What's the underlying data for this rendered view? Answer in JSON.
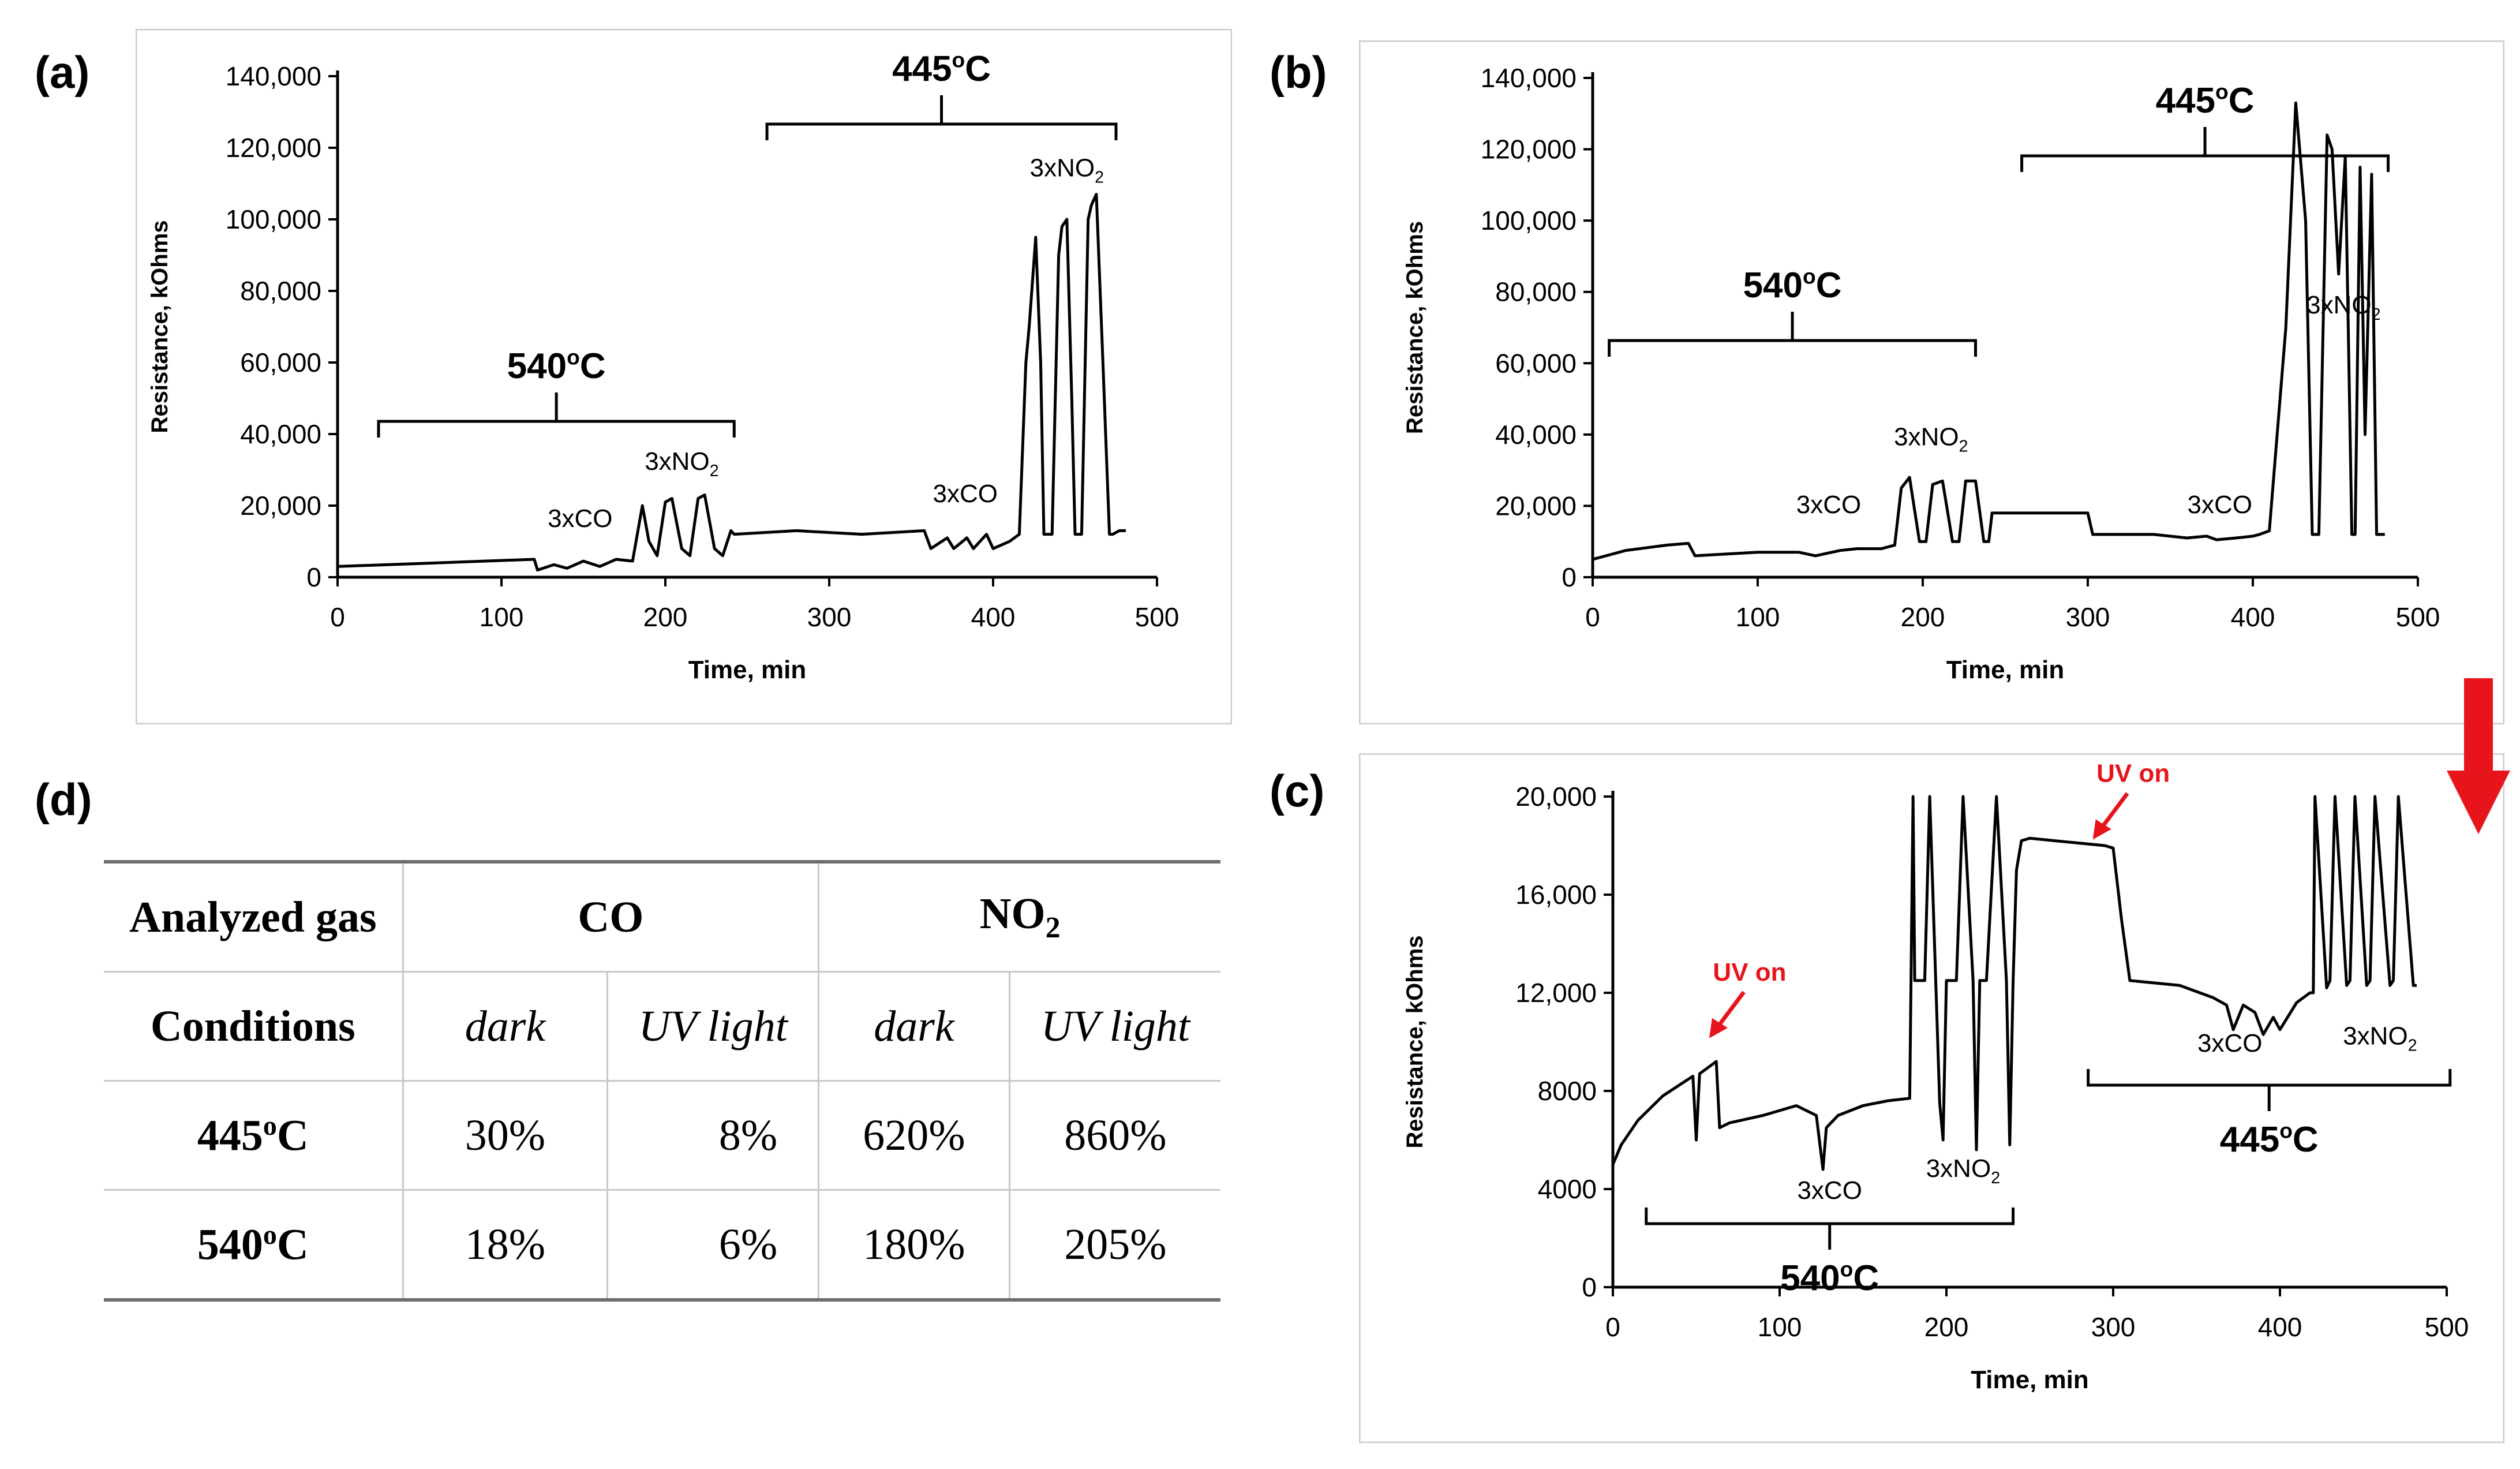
{
  "labels": {
    "a": "(a)",
    "b": "(b)",
    "c": "(c)",
    "d": "(d)"
  },
  "chart_data": [
    {
      "id": "a",
      "type": "line",
      "xlabel": "Time, min",
      "ylabel": "Resistance, kOhms",
      "xlim": [
        0,
        500
      ],
      "ylim": [
        0,
        140000
      ],
      "xticks": [
        0,
        100,
        200,
        300,
        400,
        500
      ],
      "xtick_labels": [
        "0",
        "100",
        "200",
        "300",
        "400",
        "500"
      ],
      "yticks": [
        0,
        20000,
        40000,
        60000,
        80000,
        100000,
        120000,
        140000
      ],
      "ytick_labels": [
        "0",
        "20,000",
        "40,000",
        "60,000",
        "80,000",
        "100,000",
        "120,000",
        "140,000"
      ],
      "series": [
        {
          "name": "Resistance",
          "x": [
            0,
            60,
            120,
            122,
            132,
            140,
            150,
            160,
            170,
            180,
            186,
            190,
            195,
            200,
            204,
            210,
            215,
            220,
            224,
            230,
            235,
            240,
            242,
            280,
            320,
            358,
            362,
            372,
            376,
            384,
            388,
            396,
            400,
            410,
            416,
            420,
            422,
            426,
            429,
            431,
            436,
            440,
            442,
            445,
            448,
            450,
            454,
            458,
            460,
            463,
            467,
            471,
            473,
            477,
            481
          ],
          "y": [
            3000,
            4000,
            5000,
            2000,
            3500,
            2500,
            4500,
            3000,
            5000,
            4500,
            20000,
            10000,
            6000,
            21000,
            22000,
            8000,
            6000,
            22000,
            23000,
            8000,
            6000,
            13000,
            12000,
            13000,
            12000,
            13000,
            8000,
            11000,
            8000,
            11000,
            8000,
            12000,
            8000,
            10000,
            12000,
            60000,
            70000,
            95000,
            60000,
            12000,
            12000,
            90000,
            98000,
            100000,
            50000,
            12000,
            12000,
            100000,
            104000,
            107000,
            60000,
            12000,
            12000,
            13000,
            13000
          ]
        }
      ],
      "annotations": [
        {
          "text": "540°C",
          "x_range": [
            25,
            242
          ]
        },
        {
          "text": "445°C",
          "x_range": [
            262,
            475
          ]
        },
        {
          "text": "3xCO",
          "x": 148,
          "y": 14000
        },
        {
          "text": "3xNO2",
          "x": 210,
          "y": 30000
        },
        {
          "text": "3xCO",
          "x": 383,
          "y": 21000
        },
        {
          "text": "3xNO2",
          "x": 445,
          "y": 112000
        }
      ]
    },
    {
      "id": "b",
      "type": "line",
      "xlabel": "Time, min",
      "ylabel": "Resistance, kOhms",
      "xlim": [
        0,
        500
      ],
      "ylim": [
        0,
        140000
      ],
      "xticks": [
        0,
        100,
        200,
        300,
        400,
        500
      ],
      "xtick_labels": [
        "0",
        "100",
        "200",
        "300",
        "400",
        "500"
      ],
      "yticks": [
        0,
        20000,
        40000,
        60000,
        80000,
        100000,
        120000,
        140000
      ],
      "ytick_labels": [
        "0",
        "20,000",
        "40,000",
        "60,000",
        "80,000",
        "100,000",
        "120,000",
        "140,000"
      ],
      "series": [
        {
          "name": "Resistance",
          "x": [
            0,
            20,
            45,
            58,
            62,
            100,
            125,
            135,
            150,
            160,
            175,
            183,
            187,
            192,
            198,
            202,
            206,
            212,
            218,
            222,
            226,
            232,
            237,
            240,
            242,
            290,
            300,
            303,
            340,
            360,
            372,
            378,
            390,
            400,
            404,
            410,
            420,
            426,
            432,
            436,
            440,
            445,
            448,
            452,
            456,
            460,
            462,
            465,
            468,
            472,
            475,
            480
          ],
          "y": [
            5000,
            7500,
            9000,
            9500,
            6000,
            7000,
            7000,
            6000,
            7500,
            8000,
            8000,
            9000,
            25000,
            28000,
            10000,
            10000,
            26000,
            27000,
            10000,
            10000,
            27000,
            27000,
            10000,
            10000,
            18000,
            18000,
            18000,
            12000,
            12000,
            11000,
            11500,
            10500,
            11000,
            11500,
            12000,
            13000,
            70000,
            133000,
            100000,
            12000,
            12000,
            124000,
            120000,
            85000,
            118000,
            12000,
            12000,
            115000,
            40000,
            113000,
            12000,
            12000
          ]
        }
      ],
      "annotations": [
        {
          "text": "540°C",
          "x_range": [
            10,
            232
          ]
        },
        {
          "text": "445°C",
          "x_range": [
            260,
            482
          ]
        },
        {
          "text": "3xCO",
          "x": 143,
          "y": 18000
        },
        {
          "text": "3xNO2",
          "x": 205,
          "y": 37000
        },
        {
          "text": "3xCO",
          "x": 380,
          "y": 18000
        },
        {
          "text": "3xNO2",
          "x": 455,
          "y": 74000
        }
      ]
    },
    {
      "id": "c",
      "type": "line",
      "xlabel": "Time, min",
      "ylabel": "Resistance, kOhms",
      "xlim": [
        0,
        500
      ],
      "ylim": [
        0,
        20000
      ],
      "xticks": [
        0,
        100,
        200,
        300,
        400,
        500
      ],
      "xtick_labels": [
        "0",
        "100",
        "200",
        "300",
        "400",
        "500"
      ],
      "yticks": [
        0,
        4000,
        8000,
        12000,
        16000,
        20000
      ],
      "ytick_labels": [
        "0",
        "4000",
        "8000",
        "12,000",
        "16,000",
        "20,000"
      ],
      "series": [
        {
          "name": "Resistance",
          "x": [
            0,
            5,
            15,
            30,
            48,
            50,
            52,
            62,
            64,
            70,
            90,
            100,
            110,
            122,
            126,
            128,
            135,
            150,
            165,
            178,
            180,
            181,
            187,
            190,
            196,
            198,
            200,
            206,
            210,
            216,
            218,
            220,
            224,
            230,
            236,
            238,
            240,
            242,
            245,
            250,
            280,
            295,
            300,
            305,
            310,
            340,
            360,
            368,
            372,
            378,
            385,
            390,
            396,
            400,
            410,
            418,
            420,
            421,
            428,
            430,
            433,
            440,
            442,
            445,
            452,
            454,
            457,
            466,
            468,
            471,
            480,
            482
          ],
          "y": [
            5000,
            5800,
            6800,
            7800,
            8600,
            6000,
            8700,
            9200,
            6500,
            6700,
            7000,
            7200,
            7400,
            7000,
            4800,
            6500,
            7000,
            7400,
            7600,
            7700,
            20000,
            12500,
            12500,
            20000,
            7500,
            6000,
            12500,
            12500,
            20000,
            12500,
            5600,
            12500,
            12500,
            20000,
            12500,
            5800,
            12500,
            17000,
            18200,
            18300,
            18100,
            18000,
            17900,
            15000,
            12500,
            12300,
            11800,
            11500,
            10500,
            11500,
            11200,
            10300,
            11000,
            10500,
            11600,
            12000,
            12000,
            20000,
            12200,
            12500,
            20000,
            12300,
            12500,
            20000,
            12300,
            12500,
            20000,
            12300,
            12500,
            20000,
            12300,
            12300
          ]
        }
      ],
      "annotations": [
        {
          "text": "UV on",
          "x": 82,
          "y": 12500,
          "color": "#e8141b"
        },
        {
          "text": "UV on",
          "x": 312,
          "y": 20600,
          "color": "#e8141b"
        },
        {
          "text": "3xCO",
          "x": 130,
          "y": 3600
        },
        {
          "text": "3xNO2",
          "x": 210,
          "y": 4500
        },
        {
          "text": "540°C",
          "x_range": [
            20,
            240
          ]
        },
        {
          "text": "3xCO",
          "x": 370,
          "y": 9600
        },
        {
          "text": "3xNO2",
          "x": 460,
          "y": 9900
        },
        {
          "text": "445°C",
          "x_range": [
            285,
            502
          ]
        }
      ]
    }
  ],
  "table": {
    "header_row_1": {
      "col1": "Analyzed gas",
      "co": "CO",
      "no2": "NO",
      "no2_sub": "2"
    },
    "header_row_2": {
      "col1": "Conditions",
      "c1": "dark",
      "c2": "UV light",
      "c3": "dark",
      "c4": "UV light"
    },
    "rows": [
      {
        "condition": "445",
        "condition_sup": "o",
        "condition_unit": "C",
        "co_dark": "30%",
        "co_uv": "8%",
        "no2_dark": "620%",
        "no2_uv": "860%"
      },
      {
        "condition": "540",
        "condition_sup": "o",
        "condition_unit": "C",
        "co_dark": "18%",
        "co_uv": "6%",
        "no2_dark": "180%",
        "no2_uv": "205%"
      }
    ]
  },
  "colors": {
    "axis": "#000000",
    "line": "#000000",
    "uv_annotation": "#e8141b",
    "arrow": "#e8141b",
    "frame": "#cccccc"
  }
}
